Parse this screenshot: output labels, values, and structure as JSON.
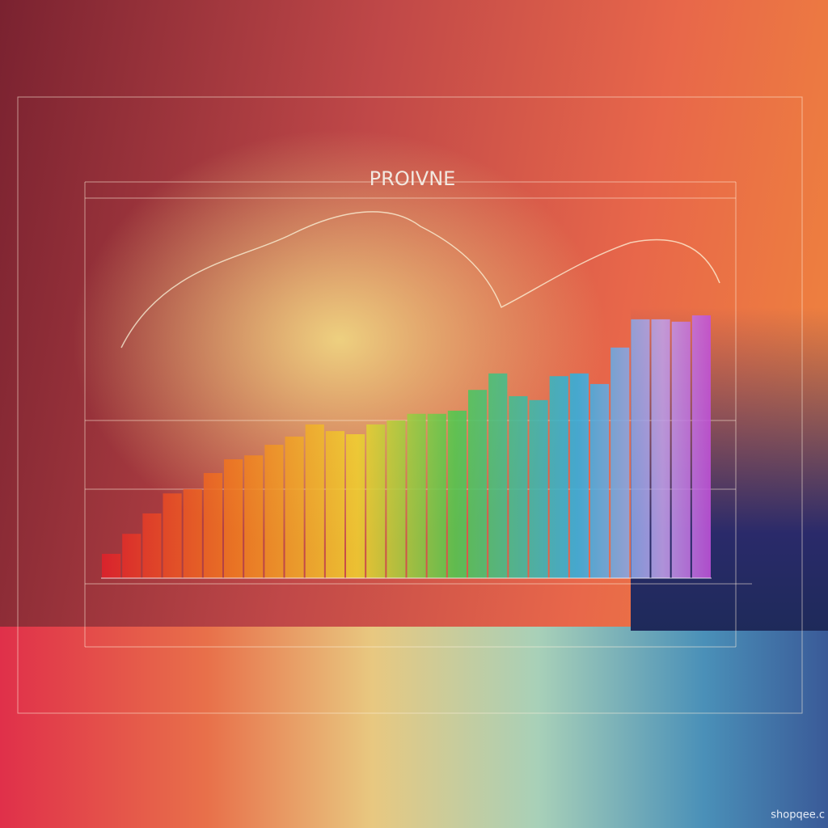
{
  "chart_data": {
    "type": "bar",
    "subtitle": "PROIVNE",
    "watermark": "shopqee.c",
    "categories": [
      null,
      null,
      null,
      null,
      null,
      null,
      null,
      null,
      null,
      null,
      null,
      null,
      null,
      null,
      null,
      null,
      null,
      null,
      null,
      null,
      null,
      null,
      null,
      null,
      null,
      null,
      null,
      null,
      null,
      null
    ],
    "values": [
      6.2,
      11.3,
      16.5,
      21.6,
      22.7,
      26.8,
      30.3,
      31.3,
      34.0,
      36.1,
      39.2,
      37.5,
      36.7,
      39.2,
      40.2,
      41.9,
      41.9,
      42.7,
      48.0,
      52.2,
      46.4,
      45.4,
      51.5,
      52.2,
      49.5,
      58.8,
      66.0,
      66.0,
      65.4,
      67.0
    ],
    "ylim": [
      0,
      100
    ],
    "grid": true
  }
}
